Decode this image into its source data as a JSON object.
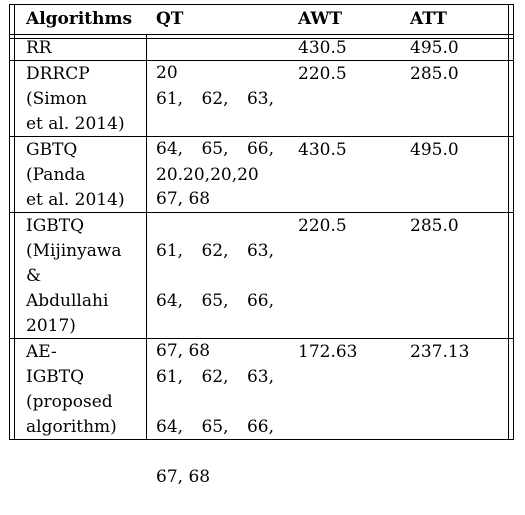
{
  "headers": [
    "Algorithms",
    "QT",
    "AWT",
    "ATT"
  ],
  "rows": [
    {
      "algorithm": "RR",
      "qt": [
        "20"
      ],
      "awt": "430.5",
      "att": "495.0"
    },
    {
      "algorithm": "DRRCP\n(Simon\net al. 2014)",
      "qt": [
        "61,   62,   63,",
        "64,   65,   66,",
        "67, 68"
      ],
      "awt": "220.5",
      "att": "285.0"
    },
    {
      "algorithm": "GBTQ\n(Panda\net al. 2014)",
      "qt": [
        "20.20,20,20"
      ],
      "awt": "430.5",
      "att": "495.0"
    },
    {
      "algorithm": "IGBTQ\n(Mijinyawa\n&\nAbdullahi\n2017)",
      "qt": [
        "61,   62,   63,",
        "64,   65,   66,",
        "67, 68"
      ],
      "awt": "220.5",
      "att": "285.0"
    },
    {
      "algorithm": "AE-\nIGBTQ\n(proposed\nalgorithm)",
      "qt": [
        "61,   62,   63,",
        "64,   65,   66,",
        "67, 68"
      ],
      "awt": "172.63",
      "att": "237.13"
    }
  ]
}
